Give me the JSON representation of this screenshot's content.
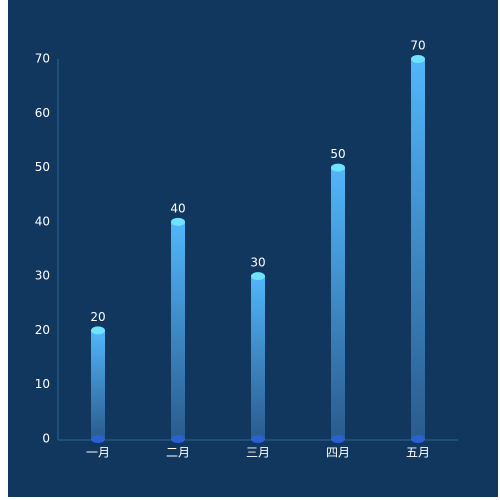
{
  "chart_data": {
    "type": "bar",
    "categories": [
      "一月",
      "二月",
      "三月",
      "四月",
      "五月"
    ],
    "values": [
      20,
      40,
      30,
      50,
      70
    ],
    "ylim": [
      0,
      70
    ],
    "yticks": [
      0,
      10,
      20,
      30,
      40,
      50,
      60,
      70
    ],
    "color": "#4fb3f6",
    "grid": false
  }
}
